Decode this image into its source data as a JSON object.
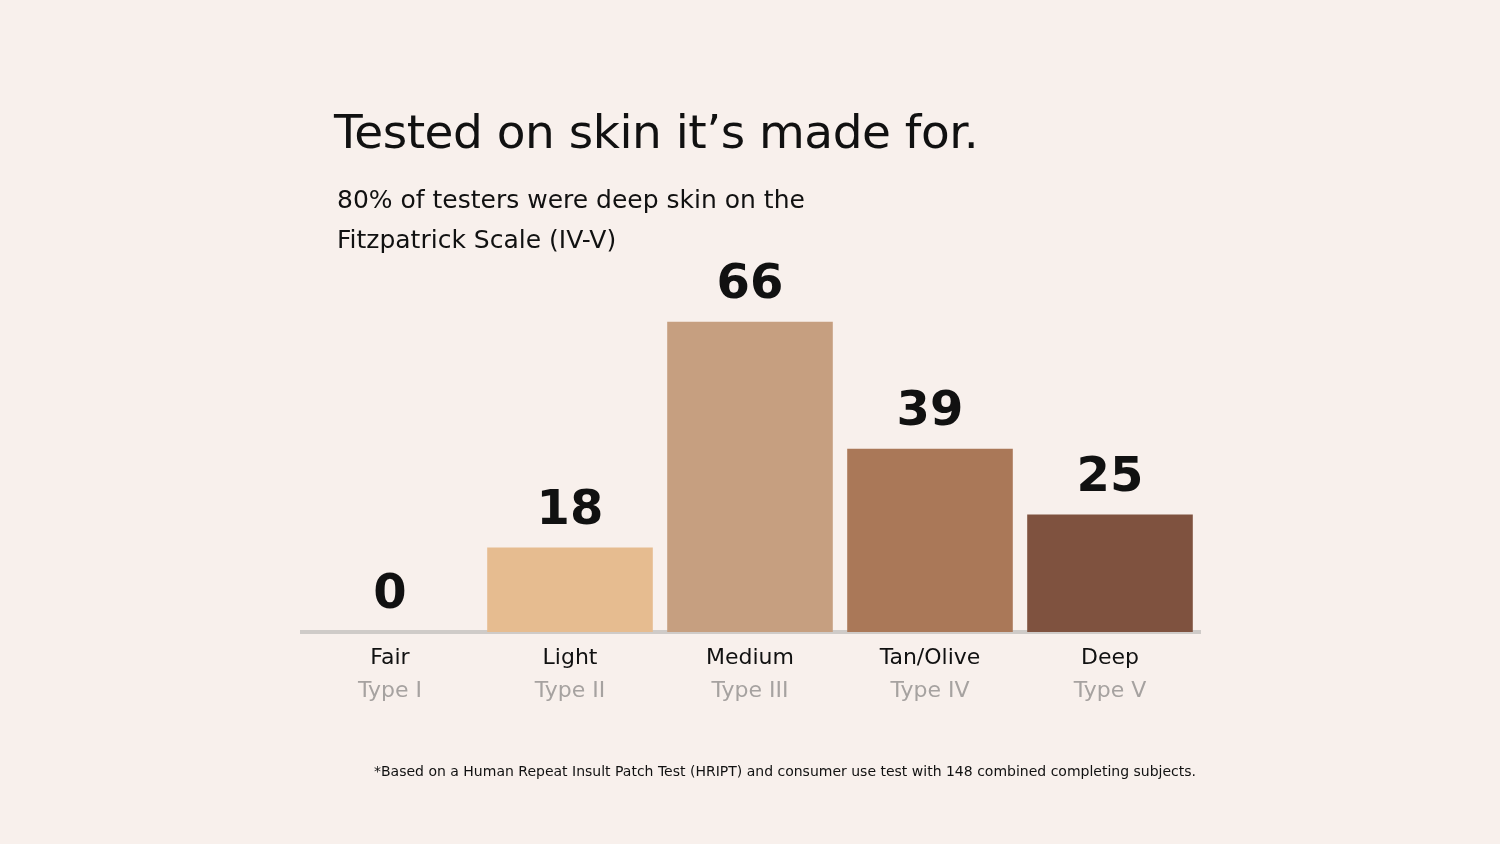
{
  "chart_data": {
    "type": "bar",
    "title": "Tested on skin it’s made for.",
    "subtitle": "80% of testers were deep skin on the Fitzpatrick Scale (IV-V)",
    "categories": [
      "Fair\nType I",
      "Light\nType II",
      "Medium\nType III",
      "Tan/Olive\nType IV",
      "Deep\nType V"
    ],
    "values": [
      0,
      18,
      66,
      39,
      25
    ],
    "colors": [
      "#eed3b8",
      "#e6bc90",
      "#c69f80",
      "#aa7858",
      "#7f523f"
    ],
    "data_labels": true,
    "grid": false,
    "tick_labels": "x",
    "annotations": [
      "*Based on a Human Repeat Insult Patch Test (HRIPT) and consumer use test with 148 combined completing subjects."
    ]
  }
}
